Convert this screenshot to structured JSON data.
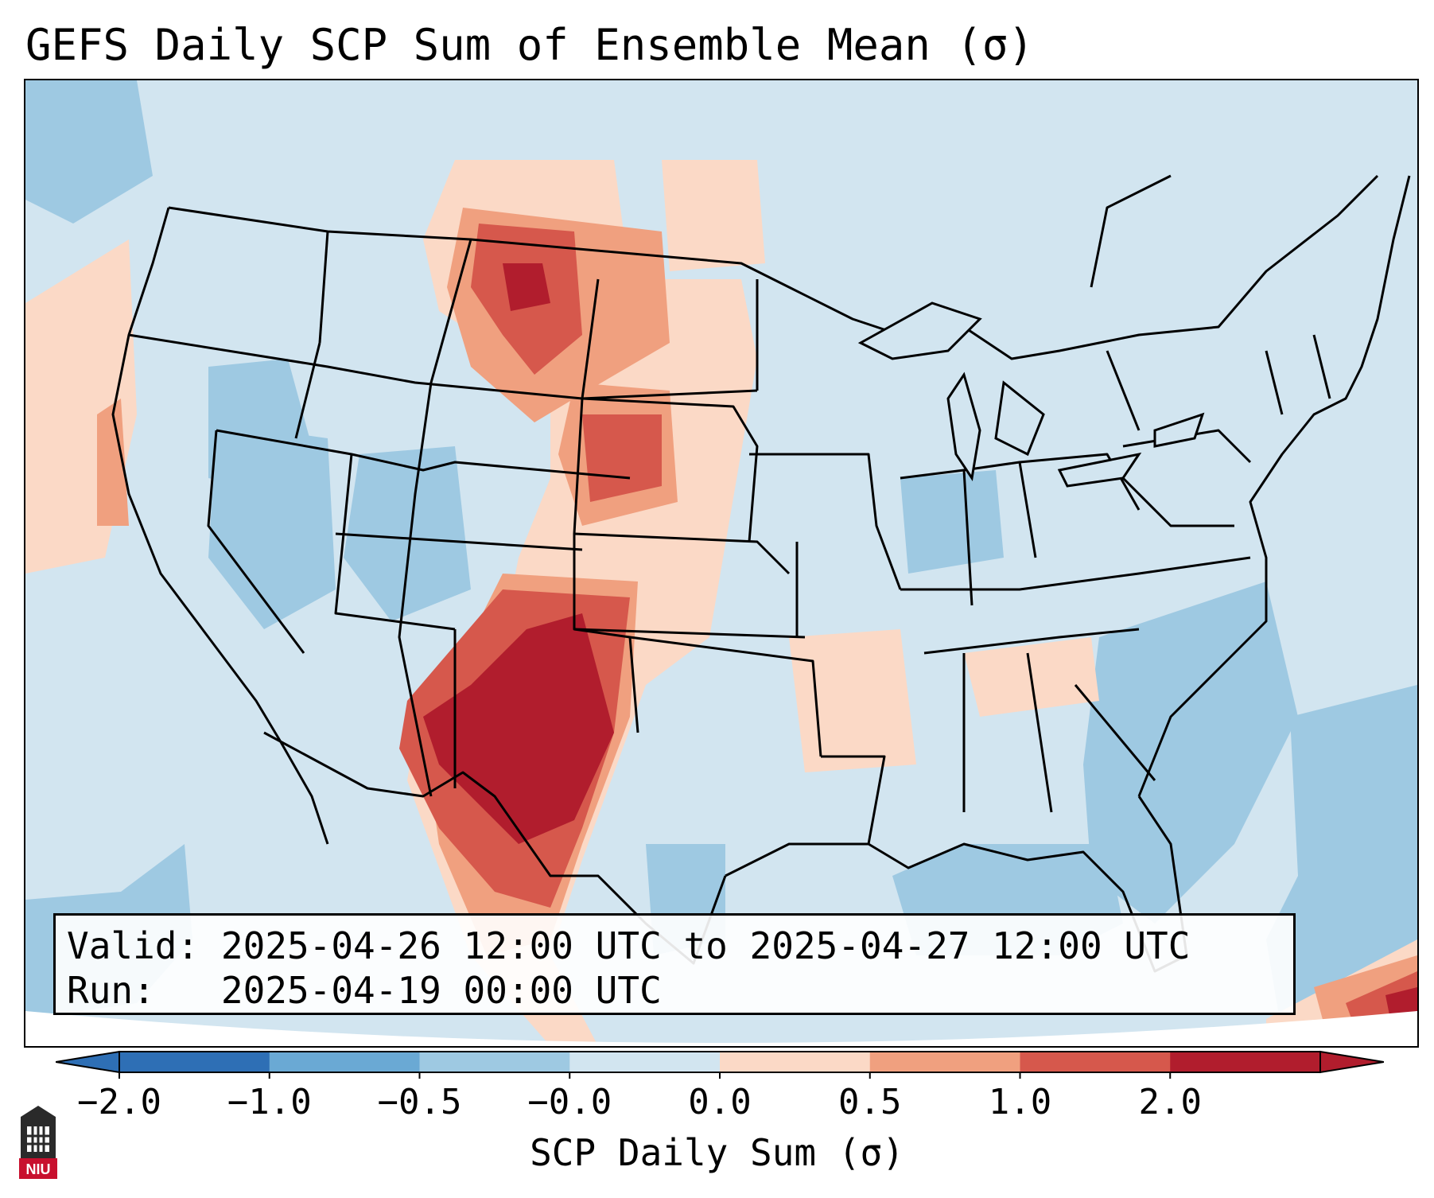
{
  "title": "GEFS Daily SCP Sum of Ensemble Mean (σ)",
  "info": {
    "valid_label": "Valid:",
    "valid_value": "2025-04-26 12:00 UTC to 2025-04-27 12:00 UTC",
    "run_label": "Run:",
    "run_value": "2025-04-19 00:00 UTC"
  },
  "colorbar": {
    "label": "SCP Daily Sum (σ)",
    "ticks": [
      "−2.0",
      "−1.0",
      "−0.5",
      "−0.0",
      "0.0",
      "0.5",
      "1.0",
      "2.0"
    ],
    "colors": [
      "#2e6fb5",
      "#6aa9d4",
      "#9ec9e2",
      "#d2e5f0",
      "#fbd9c6",
      "#f0a07f",
      "#d6584c",
      "#b11d2d"
    ],
    "extend": "both"
  },
  "map": {
    "region": "Contiguous United States",
    "ocean_color": "#d2e5f0",
    "features": [
      "state-borders",
      "coastlines",
      "country-borders"
    ],
    "anomaly_areas": [
      {
        "name": "southern-high-plains",
        "level": "max",
        "color": "#b11d2d"
      },
      {
        "name": "montana-dakotas",
        "level": "high",
        "color": "#d6584c"
      },
      {
        "name": "central-plains",
        "level": "moderate",
        "color": "#f0a07f"
      },
      {
        "name": "arkansas-tennessee",
        "level": "low",
        "color": "#fbd9c6"
      },
      {
        "name": "western-atlantic",
        "level": "negative",
        "color": "#9ec9e2"
      }
    ]
  },
  "logo": {
    "text": "NIU",
    "icon": "university-tower-icon"
  }
}
